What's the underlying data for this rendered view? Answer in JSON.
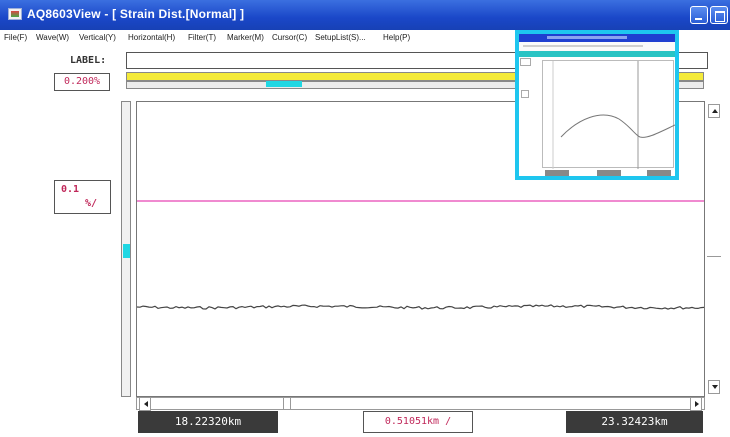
{
  "window": {
    "title": "AQ8603View - [ Strain Dist.[Normal] ]"
  },
  "menu": {
    "items": [
      "File(F)",
      "Wave(W)",
      "Vertical(Y)",
      "Horizontal(H)",
      "Filter(T)",
      "Marker(M)",
      "Cursor(C)",
      "SetupList(S)...",
      "Help(P)"
    ]
  },
  "label_row": {
    "caption": "LABEL:",
    "value": ""
  },
  "strain_value": "0.200%",
  "vertical_scale": {
    "value": "0.1",
    "unit": "%/"
  },
  "readouts": {
    "start_distance": "18.22320km",
    "division": "0.51051km /",
    "end_distance": "23.32423km"
  },
  "colors": {
    "titlebar": "#1a47c8",
    "yellow_bar": "#f4ea3a",
    "accent_cyan": "#20d7e3",
    "reference_line": "#f08ad0",
    "trace": "#444444",
    "readout_text": "#c0285a",
    "thumbnail_border": "#1ec6ef"
  },
  "icons": {
    "app": "app-icon",
    "minimize": "minimize-icon",
    "maximize": "maximize-icon",
    "scroll_up": "arrow-up-icon",
    "scroll_down": "arrow-down-icon",
    "scroll_left": "arrow-left-icon",
    "scroll_right": "arrow-right-icon"
  }
}
